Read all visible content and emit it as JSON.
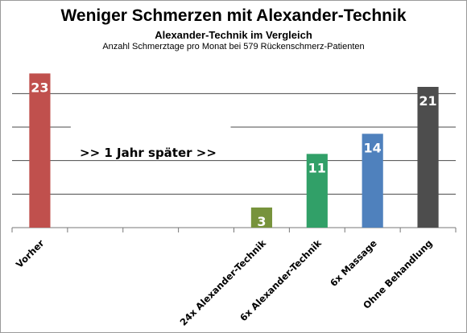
{
  "chart_data": {
    "type": "bar",
    "title": "Weniger Schmerzen mit Alexander-Technik",
    "subtitle": "Alexander-Technik im Vergleich",
    "note": "Anzahl Schmerztage pro Monat bei 579 Rückenschmerz-Patienten",
    "annotation": ">> 1 Jahr später >>",
    "categories": [
      "Vorher",
      "",
      "",
      "",
      "24x Alexander-Technik",
      "6x Alexander-Technik",
      "6x Massage",
      "Ohne Behandlung"
    ],
    "values": [
      23,
      null,
      null,
      null,
      3,
      11,
      14,
      21
    ],
    "data_labels": [
      "23",
      "",
      "",
      "",
      "3",
      "11",
      "14",
      "21"
    ],
    "bar_colors": [
      "#c0504d",
      null,
      null,
      null,
      "#77933c",
      "#31a068",
      "#4f81bd",
      "#4d4d4d"
    ],
    "ylim": [
      0,
      24
    ],
    "grid_step": 5,
    "grid": true,
    "legend": "none",
    "xlabel": "",
    "ylabel": ""
  }
}
